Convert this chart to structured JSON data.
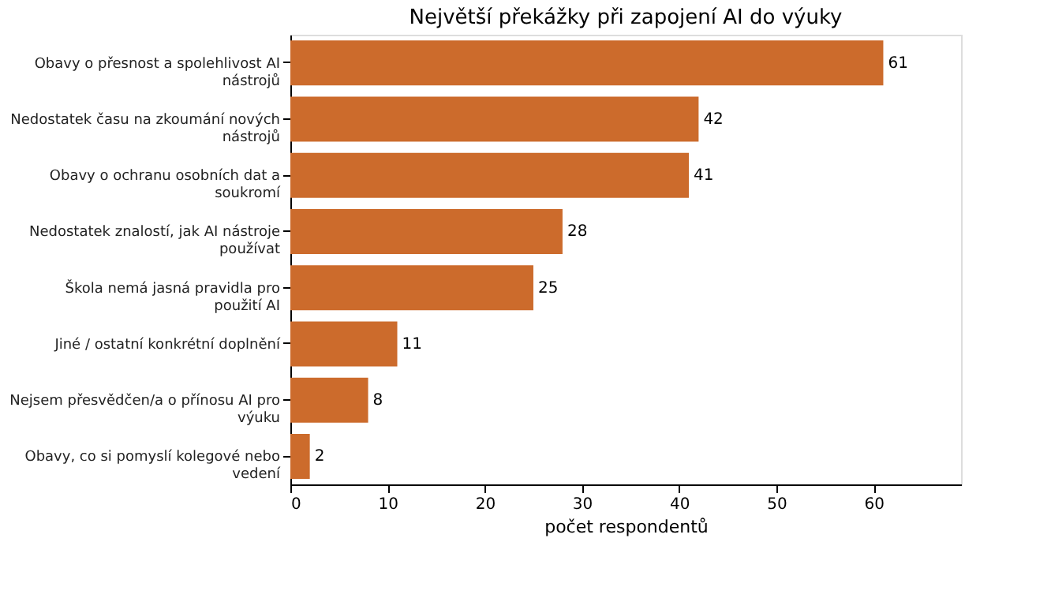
{
  "chart_data": {
    "type": "bar",
    "orientation": "horizontal",
    "title": "Největší překážky při zapojení AI do výuky",
    "xlabel": "počet respondentů",
    "categories": [
      "Obavy o přesnost a spolehlivost AI nástrojů",
      "Nedostatek času na zkoumání nových nástrojů",
      "Obavy o ochranu osobních dat a soukromí",
      "Nedostatek znalostí, jak AI nástroje používat",
      "Škola nemá jasná pravidla pro použití AI",
      "Jiné / ostatní konkrétní doplnění",
      "Nejsem přesvědčen/a o přínosu AI pro výuku",
      "Obavy, co si pomyslí kolegové nebo vedení"
    ],
    "values": [
      61,
      42,
      41,
      28,
      25,
      11,
      8,
      2
    ],
    "color": "#cc6b2c",
    "xlim": [
      0,
      69
    ],
    "xticks": [
      0,
      10,
      20,
      30,
      40,
      50,
      60
    ],
    "data_labels": true,
    "grid": false
  }
}
